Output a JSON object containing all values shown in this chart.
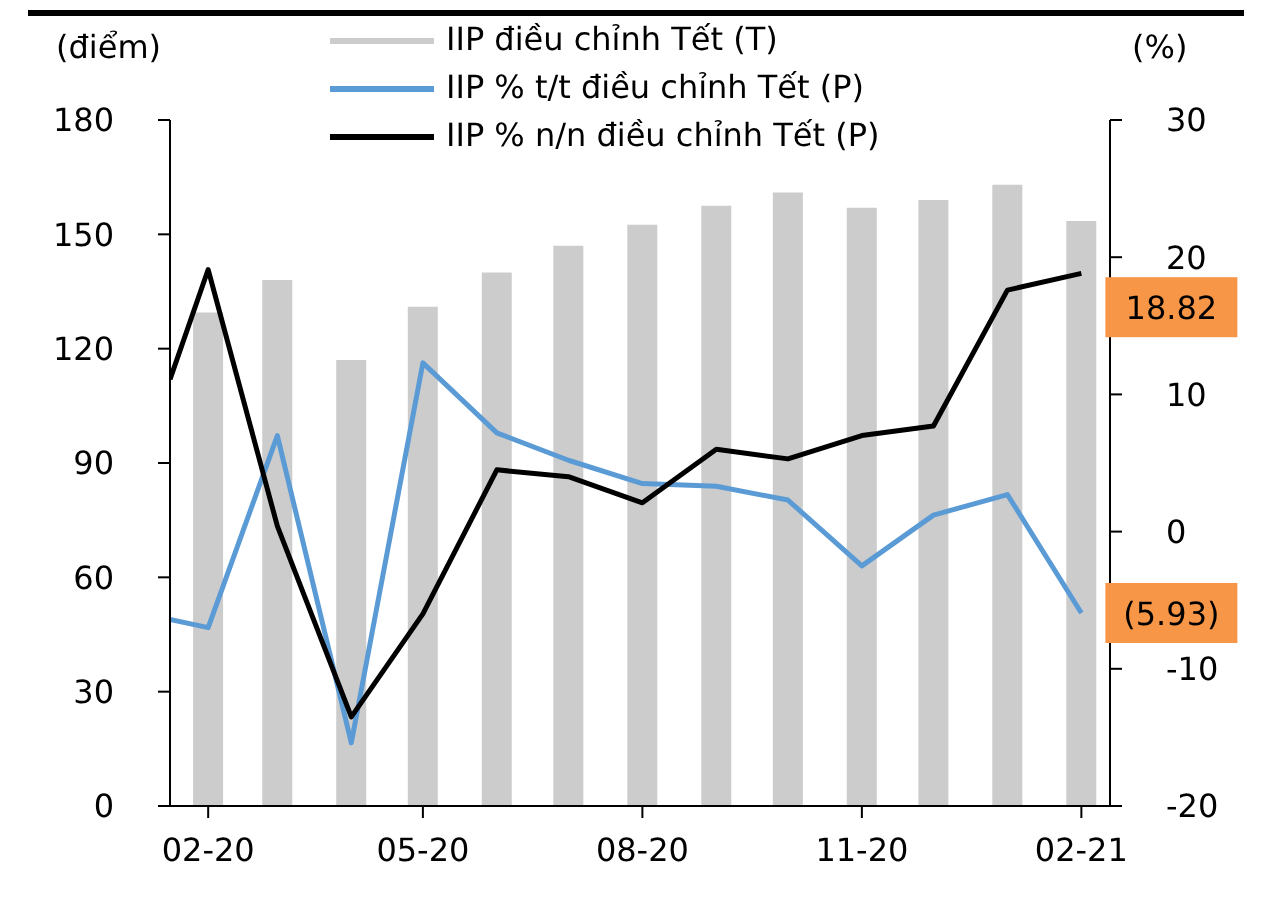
{
  "chart_data": {
    "type": "bar",
    "ylabel": "(điểm)",
    "y2label": "(%)",
    "x": [
      "2020-02",
      "2020-03",
      "2020-04",
      "2020-05",
      "2020-06",
      "2020-07",
      "2020-08",
      "2020-09",
      "2020-10",
      "2020-11",
      "2020-12",
      "2021-01",
      "2021-02"
    ],
    "xlim": [
      "2020-01-16",
      "2021-02-13"
    ],
    "xticks": [
      {
        "value": "2020-02",
        "label": "02-20"
      },
      {
        "value": "2020-05",
        "label": "05-20"
      },
      {
        "value": "2020-08",
        "label": "08-20"
      },
      {
        "value": "2020-11",
        "label": "11-20"
      },
      {
        "value": "2021-02",
        "label": "02-21"
      }
    ],
    "ylim": [
      0,
      180
    ],
    "yticks": [
      0,
      30,
      60,
      90,
      120,
      150,
      180
    ],
    "y2lim": [
      -20,
      30
    ],
    "y2ticks": [
      -20,
      -10,
      0,
      10,
      20,
      30
    ],
    "series": [
      {
        "name": "IIP điều chỉnh Tết (T)",
        "color": "#cccccc",
        "values": [
          129.5,
          138,
          117,
          131,
          140,
          147,
          152.5,
          157.5,
          161,
          157,
          159,
          163,
          153.5
        ]
      },
      {
        "name": "IIP % t/t điều chỉnh Tết (P)",
        "type": "line",
        "axis": "y2",
        "color": "#5b9bd5",
        "x": [
          "2020-01-16",
          "2020-02",
          "2020-03",
          "2020-04",
          "2020-05",
          "2020-06",
          "2020-07",
          "2020-08",
          "2020-09",
          "2020-10",
          "2020-11",
          "2020-12",
          "2021-01",
          "2021-02"
        ],
        "values": [
          -6.4,
          -7.0,
          7.0,
          -15.4,
          12.3,
          7.2,
          5.2,
          3.5,
          3.3,
          2.3,
          -2.5,
          1.2,
          2.7,
          -5.93
        ],
        "value_labels": [
          null,
          null,
          null,
          null,
          null,
          null,
          null,
          null,
          null,
          null,
          null,
          null,
          null,
          "(5.93)"
        ]
      },
      {
        "name": "IIP % n/n điều chỉnh Tết (P)",
        "type": "line",
        "axis": "y2",
        "color": "#000000",
        "x": [
          "2020-01-16",
          "2020-02",
          "2020-03",
          "2020-04",
          "2020-05",
          "2020-06",
          "2020-07",
          "2020-08",
          "2020-09",
          "2020-10",
          "2020-11",
          "2020-12",
          "2021-01",
          "2021-02"
        ],
        "values": [
          11.1,
          19.1,
          0.4,
          -13.5,
          -6.0,
          4.5,
          4.0,
          2.1,
          6.0,
          5.3,
          7.0,
          7.7,
          17.6,
          18.82
        ],
        "value_labels": [
          null,
          null,
          null,
          null,
          null,
          null,
          null,
          null,
          null,
          null,
          null,
          null,
          null,
          "18.82"
        ]
      }
    ],
    "legend": "top",
    "grid": false,
    "marker": "none",
    "line_style": "solid"
  }
}
